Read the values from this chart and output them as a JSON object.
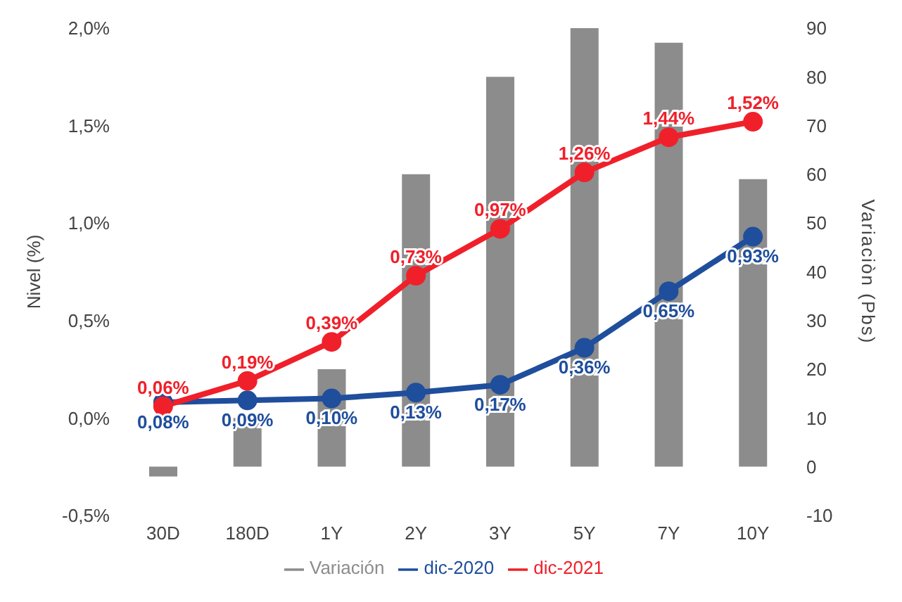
{
  "chart_data": {
    "type": "bar",
    "categories": [
      "30D",
      "180D",
      "1Y",
      "2Y",
      "3Y",
      "5Y",
      "7Y",
      "10Y"
    ],
    "series": [
      {
        "name": "Variación",
        "axis": "y2",
        "color": "#8c8c8c",
        "values": [
          -2,
          10,
          20,
          60,
          80,
          90,
          87,
          59
        ]
      },
      {
        "name": "dic-2020",
        "type": "line",
        "color": "#1f4e9c",
        "values": [
          0.08,
          0.09,
          0.1,
          0.13,
          0.17,
          0.36,
          0.65,
          0.93
        ],
        "value_labels": [
          "0,08%",
          "0,09%",
          "0,10%",
          "0,13%",
          "0,17%",
          "0,36%",
          "0,65%",
          "0,93%"
        ]
      },
      {
        "name": "dic-2021",
        "type": "line",
        "color": "#f0202a",
        "values": [
          0.06,
          0.19,
          0.39,
          0.73,
          0.97,
          1.26,
          1.44,
          1.52
        ],
        "value_labels": [
          "0,06%",
          "0,19%",
          "0,39%",
          "0,73%",
          "0,97%",
          "1,26%",
          "1,44%",
          "1,52%"
        ]
      }
    ],
    "ylabel": "Nivel (%)",
    "y2label": "Variaciòn (Pbs)",
    "ylim": [
      -0.5,
      2.0
    ],
    "yticks": [
      {
        "value": -0.5,
        "label": "-0,5%"
      },
      {
        "value": 0,
        "label": "0,0%"
      },
      {
        "value": 0.5,
        "label": "0,5%"
      },
      {
        "value": 1.0,
        "label": "1,0%"
      },
      {
        "value": 1.5,
        "label": "1,5%"
      },
      {
        "value": 2.0,
        "label": "2,0%"
      }
    ],
    "y2lim": [
      -10,
      90
    ],
    "y2ticks": [
      -10,
      0,
      10,
      20,
      30,
      40,
      50,
      60,
      70,
      80,
      90
    ],
    "legend": "bottom",
    "marker": "circle",
    "line_style": "solid",
    "grid": false
  }
}
